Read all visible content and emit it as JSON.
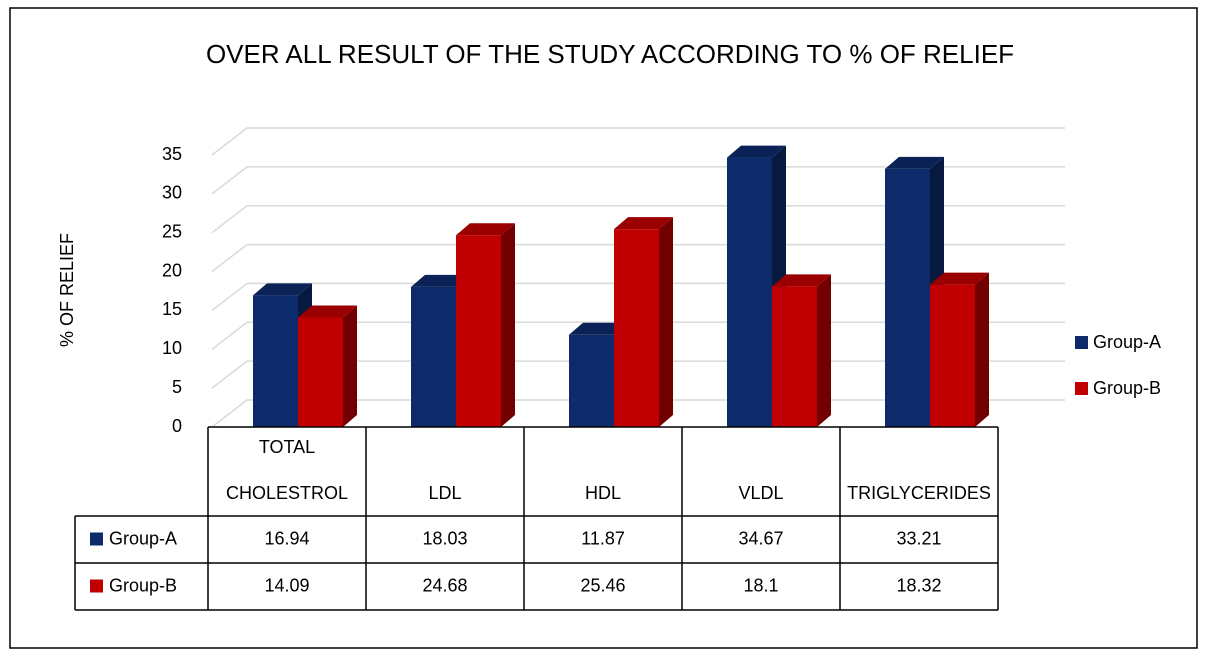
{
  "chart_data": {
    "type": "bar",
    "title": "OVER ALL RESULT OF THE STUDY ACCORDING TO % OF RELIEF",
    "y_label": "% OF  RELIEF",
    "categories": [
      "TOTAL CHOLESTROL",
      "LDL",
      "HDL",
      "VLDL",
      "TRIGLYCERIDES"
    ],
    "series": [
      {
        "name": "Group-A",
        "color": "#0d2a6b",
        "values": [
          16.94,
          18.03,
          11.87,
          34.67,
          33.21
        ]
      },
      {
        "name": "Group-B",
        "color": "#c00000",
        "values": [
          14.09,
          24.68,
          25.46,
          18.1,
          18.32
        ]
      }
    ],
    "ylim": [
      0,
      35
    ],
    "yticks": [
      0,
      5,
      10,
      15,
      20,
      25,
      30,
      35
    ],
    "grid": true,
    "legend": "right",
    "data_table": true
  }
}
